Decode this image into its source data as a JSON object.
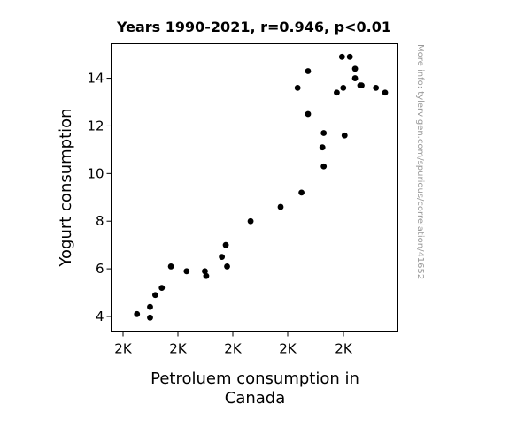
{
  "chart_data": {
    "type": "scatter",
    "title": "Years 1990-2021, r=0.946, p<0.01",
    "xlabel_lines": [
      "Petroluem consumption in",
      "Canada"
    ],
    "ylabel": "Yogurt consumption",
    "side_note": "More info: tylervigen.com/spurious/correlation/41652",
    "x_tick_labels": [
      "2K",
      "2K",
      "2K",
      "2K",
      "2K"
    ],
    "y_ticks": [
      4,
      6,
      8,
      10,
      12,
      14
    ],
    "ylim": [
      3.35,
      15.45
    ],
    "grid": false,
    "legend": "none",
    "point_color": "#000000",
    "points": [
      {
        "x": 0.05,
        "y": 4.1
      },
      {
        "x": 0.1,
        "y": 4.4
      },
      {
        "x": 0.1,
        "y": 3.95
      },
      {
        "x": 0.12,
        "y": 4.9
      },
      {
        "x": 0.145,
        "y": 5.2
      },
      {
        "x": 0.18,
        "y": 6.1
      },
      {
        "x": 0.24,
        "y": 5.9
      },
      {
        "x": 0.31,
        "y": 5.9
      },
      {
        "x": 0.315,
        "y": 5.7
      },
      {
        "x": 0.375,
        "y": 6.5
      },
      {
        "x": 0.39,
        "y": 7.0
      },
      {
        "x": 0.395,
        "y": 6.1
      },
      {
        "x": 0.485,
        "y": 8.0
      },
      {
        "x": 0.6,
        "y": 8.6
      },
      {
        "x": 0.665,
        "y": 13.6
      },
      {
        "x": 0.68,
        "y": 9.2
      },
      {
        "x": 0.705,
        "y": 14.3
      },
      {
        "x": 0.705,
        "y": 12.5
      },
      {
        "x": 0.76,
        "y": 11.1
      },
      {
        "x": 0.765,
        "y": 11.7
      },
      {
        "x": 0.765,
        "y": 10.3
      },
      {
        "x": 0.815,
        "y": 13.4
      },
      {
        "x": 0.835,
        "y": 14.9
      },
      {
        "x": 0.84,
        "y": 13.6
      },
      {
        "x": 0.845,
        "y": 11.6
      },
      {
        "x": 0.865,
        "y": 14.9
      },
      {
        "x": 0.885,
        "y": 14.4
      },
      {
        "x": 0.885,
        "y": 14.0
      },
      {
        "x": 0.905,
        "y": 13.7
      },
      {
        "x": 0.91,
        "y": 13.7
      },
      {
        "x": 0.965,
        "y": 13.6
      },
      {
        "x": 1.0,
        "y": 13.4
      }
    ]
  }
}
